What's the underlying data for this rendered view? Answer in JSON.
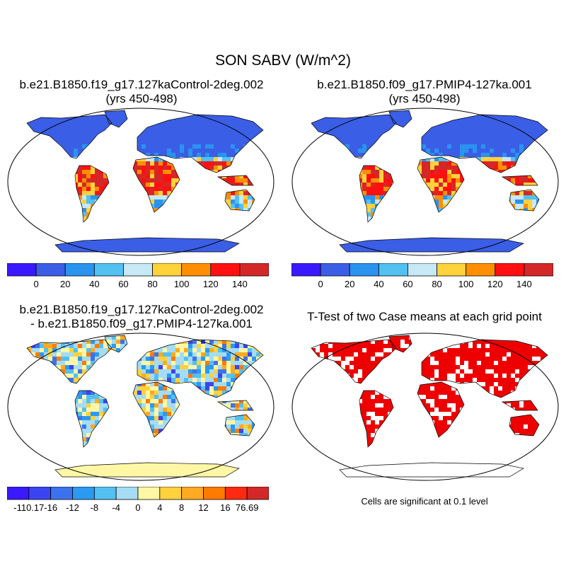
{
  "title": "SON SABV (W/m^2)",
  "panels": {
    "control": {
      "title_line1": "b.e21.B1850.f19_g17.127kaControl-2deg.002",
      "title_line2": "(yrs 450-498)"
    },
    "pmip": {
      "title_line1": "b.e21.B1850.f09_g17.PMIP4-127ka.001",
      "title_line2": "(yrs 450-498)"
    },
    "difference": {
      "title_line1": "b.e21.B1850.f19_g17.127kaControl-2deg.002",
      "title_line2": "- b.e21.B1850.f09_g17.PMIP4-127ka.001"
    },
    "ttest": {
      "title": "T-Test of two Case means at each grid point",
      "note": "Cells are significant at 0.1 level"
    }
  },
  "colorbars": {
    "absolute": {
      "colors": [
        "#3b19ff",
        "#3b5ee6",
        "#2a93f0",
        "#53c0f2",
        "#c7e8f5",
        "#ffd23c",
        "#ff8f00",
        "#ff1010",
        "#d42828"
      ],
      "labels": [
        "0",
        "20",
        "40",
        "60",
        "80",
        "100",
        "120",
        "140"
      ]
    },
    "difference": {
      "colors": [
        "#3b19ff",
        "#3b44f2",
        "#3d72ee",
        "#2a9af2",
        "#53c0f2",
        "#a6dcf3",
        "#fff7a6",
        "#ffd23c",
        "#ffaa20",
        "#ff7a00",
        "#ff2a10",
        "#d42828"
      ],
      "labels": [
        "-110.17",
        "-16",
        "-12",
        "-8",
        "-4",
        "0",
        "4",
        "8",
        "12",
        "16",
        "76.69"
      ]
    },
    "significance": {
      "color": "#ee0000"
    }
  }
}
